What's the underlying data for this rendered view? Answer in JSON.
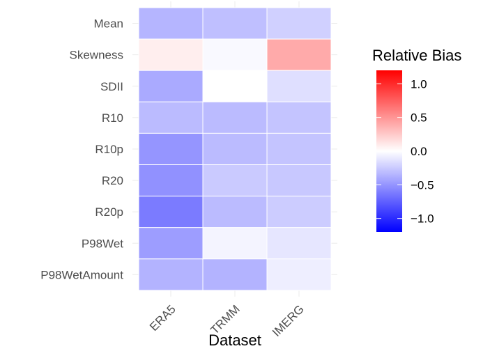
{
  "chart_data": {
    "type": "heatmap",
    "title": "",
    "xlabel": "Dataset",
    "ylabel": "",
    "x_categories": [
      "ERA5",
      "TRMM",
      "IMERG"
    ],
    "y_categories": [
      "Mean",
      "Skewness",
      "SDII",
      "R10",
      "R10p",
      "R20",
      "R20p",
      "P98Wet",
      "P98WetAmount"
    ],
    "values": [
      [
        -0.35,
        -0.3,
        -0.22
      ],
      [
        0.08,
        -0.03,
        0.4
      ],
      [
        -0.4,
        0.0,
        -0.15
      ],
      [
        -0.32,
        -0.32,
        -0.28
      ],
      [
        -0.5,
        -0.32,
        -0.28
      ],
      [
        -0.52,
        -0.25,
        -0.26
      ],
      [
        -0.62,
        -0.32,
        -0.24
      ],
      [
        -0.46,
        -0.05,
        -0.12
      ],
      [
        -0.36,
        -0.36,
        -0.08
      ]
    ],
    "color_scale": {
      "low": "#0000ff",
      "mid": "#ffffff",
      "high": "#ff0000",
      "limits": [
        -1.2,
        1.2
      ]
    },
    "grid": true,
    "legend": {
      "title": "Relative Bias",
      "placement": "right",
      "ticks": [
        1.0,
        0.5,
        0.0,
        -0.5,
        -1.0
      ],
      "tick_labels": [
        "1.0",
        "0.5",
        "0.0",
        "−0.5",
        "−1.0"
      ]
    }
  }
}
